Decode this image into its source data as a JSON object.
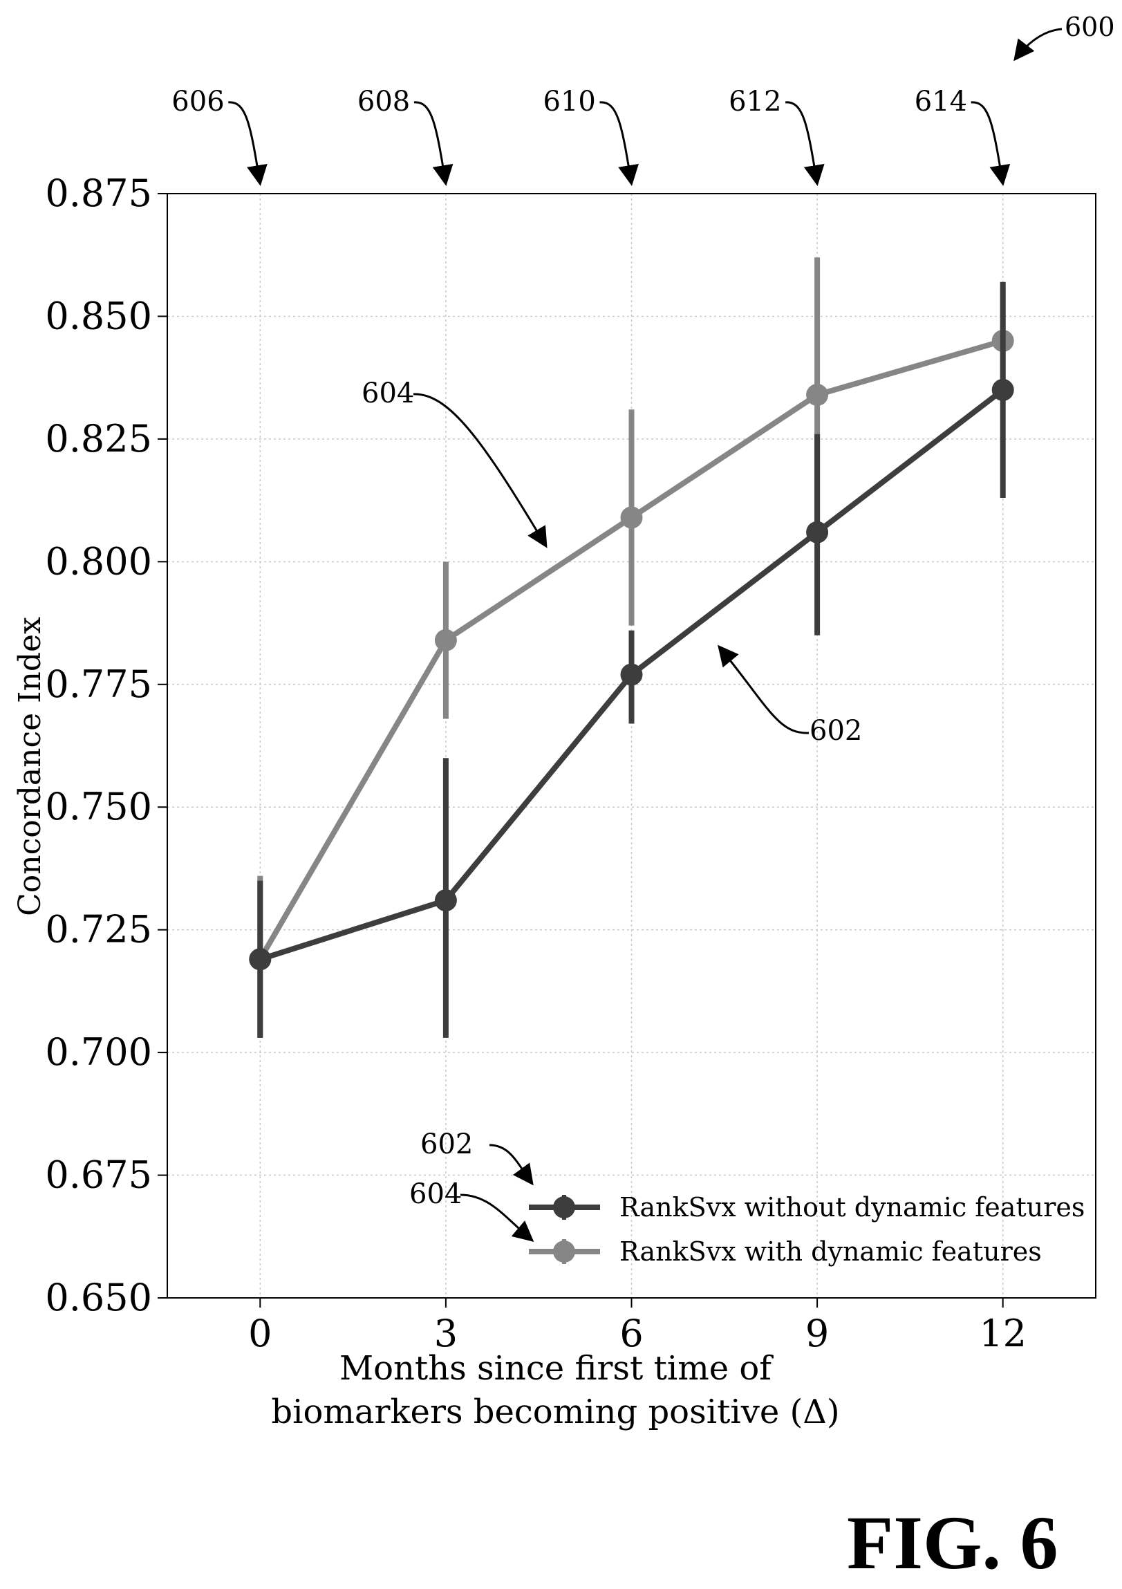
{
  "figure": {
    "ref_numeral": "600",
    "caption": "FIG. 6"
  },
  "chart_data": {
    "type": "line",
    "title": "",
    "xlabel_lines": [
      "Months since first time of",
      "biomarkers becoming positive (Δ)"
    ],
    "ylabel": "Concordance Index",
    "x": [
      0,
      3,
      6,
      9,
      12
    ],
    "x_tick_labels": [
      "0",
      "3",
      "6",
      "9",
      "12"
    ],
    "xlim": [
      -1.5,
      13.5
    ],
    "ylim": [
      0.65,
      0.875
    ],
    "y_ticks": [
      0.65,
      0.675,
      0.7,
      0.725,
      0.75,
      0.775,
      0.8,
      0.825,
      0.85,
      0.875
    ],
    "y_tick_labels": [
      "0.650",
      "0.675",
      "0.700",
      "0.725",
      "0.750",
      "0.775",
      "0.800",
      "0.825",
      "0.850",
      "0.875"
    ],
    "grid": true,
    "legend_position": "bottom-right",
    "series": [
      {
        "name": "RankSvx without dynamic features",
        "color": "#3d3d3d",
        "values": [
          0.719,
          0.731,
          0.777,
          0.806,
          0.835
        ],
        "err_low": [
          0.703,
          0.703,
          0.767,
          0.785,
          0.813
        ],
        "err_high": [
          0.735,
          0.76,
          0.786,
          0.826,
          0.857
        ]
      },
      {
        "name": "RankSvx with dynamic features",
        "color": "#868686",
        "values": [
          0.719,
          0.784,
          0.809,
          0.834,
          0.845
        ],
        "err_low": [
          0.703,
          0.768,
          0.787,
          0.806,
          0.834
        ],
        "err_high": [
          0.736,
          0.8,
          0.831,
          0.862,
          0.856
        ]
      }
    ],
    "callouts": {
      "x_markers": [
        "606",
        "608",
        "610",
        "612",
        "614"
      ],
      "line_602": "602",
      "line_604": "604",
      "legend_602": "602",
      "legend_604": "604"
    }
  }
}
